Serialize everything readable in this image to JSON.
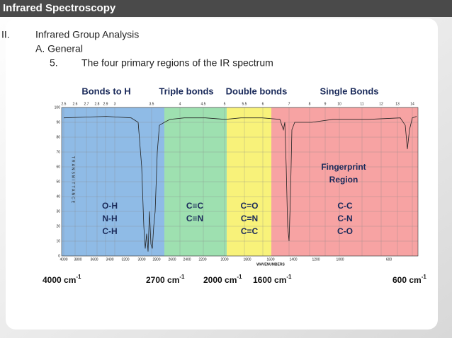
{
  "header": {
    "title": "Infrared Spectroscopy"
  },
  "outline": {
    "numeral": "II.",
    "heading": "Infrared Group Analysis",
    "sub": "A.  General",
    "item_number": "5.",
    "item": "The four primary regions of the IR spectrum"
  },
  "regions": [
    {
      "name": "Bonds to H",
      "bonds": [
        "O-H",
        "N-H",
        "C-H"
      ]
    },
    {
      "name": "Triple bonds",
      "bonds": [
        "C≡C",
        "C≡N"
      ]
    },
    {
      "name": "Double bonds",
      "bonds": [
        "C=O",
        "C=N",
        "C=C"
      ]
    },
    {
      "name": "Single Bonds",
      "bonds": [
        "C-C",
        "C-N",
        "C-O"
      ]
    }
  ],
  "fingerprint": [
    "Fingerprint",
    "Region"
  ],
  "spectrum": {
    "top_ticks": [
      "2.5",
      "2.6",
      "2.7",
      "2.8",
      "2.9",
      "3",
      "3.5",
      "4",
      "4.5",
      "5",
      "5.5",
      "6",
      "7",
      "8",
      "9",
      "10",
      "11",
      "12",
      "13",
      "14"
    ],
    "left_ticks": [
      "100",
      "90",
      "80",
      "70",
      "60",
      "50",
      "40",
      "30",
      "20",
      "10",
      "0"
    ],
    "bottom_ticks": [
      "4000",
      "3800",
      "3600",
      "3400",
      "3200",
      "3000",
      "2800",
      "2600",
      "2400",
      "2200",
      "2000",
      "1800",
      "1600",
      "1400",
      "1200",
      "1000",
      "600"
    ],
    "x_label": "WAVENUMBERS",
    "y_label": "TRANSMITTANCE"
  },
  "boundaries": [
    {
      "text": "4000 cm",
      "sup": "-1"
    },
    {
      "text": "2700 cm",
      "sup": "-1"
    },
    {
      "text": "2000 cm",
      "sup": "-1"
    },
    {
      "text": "1600 cm",
      "sup": "-1"
    },
    {
      "text": "600 cm",
      "sup": "-1"
    }
  ]
}
